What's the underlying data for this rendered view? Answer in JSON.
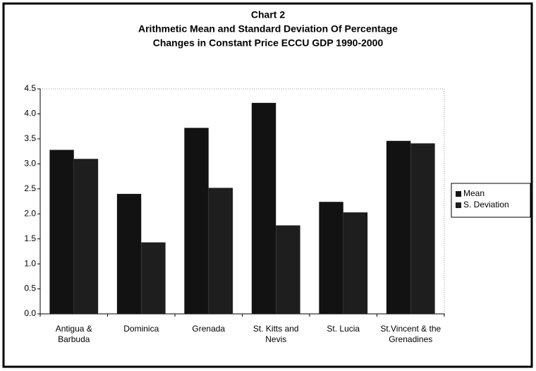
{
  "chart_data": {
    "type": "bar",
    "title": "Chart 2",
    "subtitle": [
      "Arithmetic Mean and Standard Deviation Of Percentage",
      "Changes in Constant Price ECCU GDP 1990-2000"
    ],
    "categories": [
      "Antigua & Barbuda",
      "Dominica",
      "Grenada",
      "St. Kitts and Nevis",
      "St. Lucia",
      "St.Vincent & the Grenadines"
    ],
    "series": [
      {
        "name": "Mean",
        "color": "#121212",
        "values": [
          3.28,
          2.4,
          3.72,
          4.22,
          2.24,
          3.46
        ]
      },
      {
        "name": "S. Deviation",
        "color": "#1e1e1e",
        "values": [
          3.1,
          1.43,
          2.52,
          1.77,
          2.03,
          3.41
        ]
      }
    ],
    "ylim": [
      0,
      4.5
    ],
    "yticks": [
      {
        "value": 0,
        "label": "0.0"
      },
      0.5,
      {
        "value": 1,
        "label": "1.0"
      },
      1.5,
      {
        "value": 2,
        "label": "2.0"
      },
      2.5,
      {
        "value": 3,
        "label": "3.0"
      },
      3.5,
      {
        "value": 4,
        "label": "4.0"
      },
      4.5
    ],
    "legend": "right"
  }
}
